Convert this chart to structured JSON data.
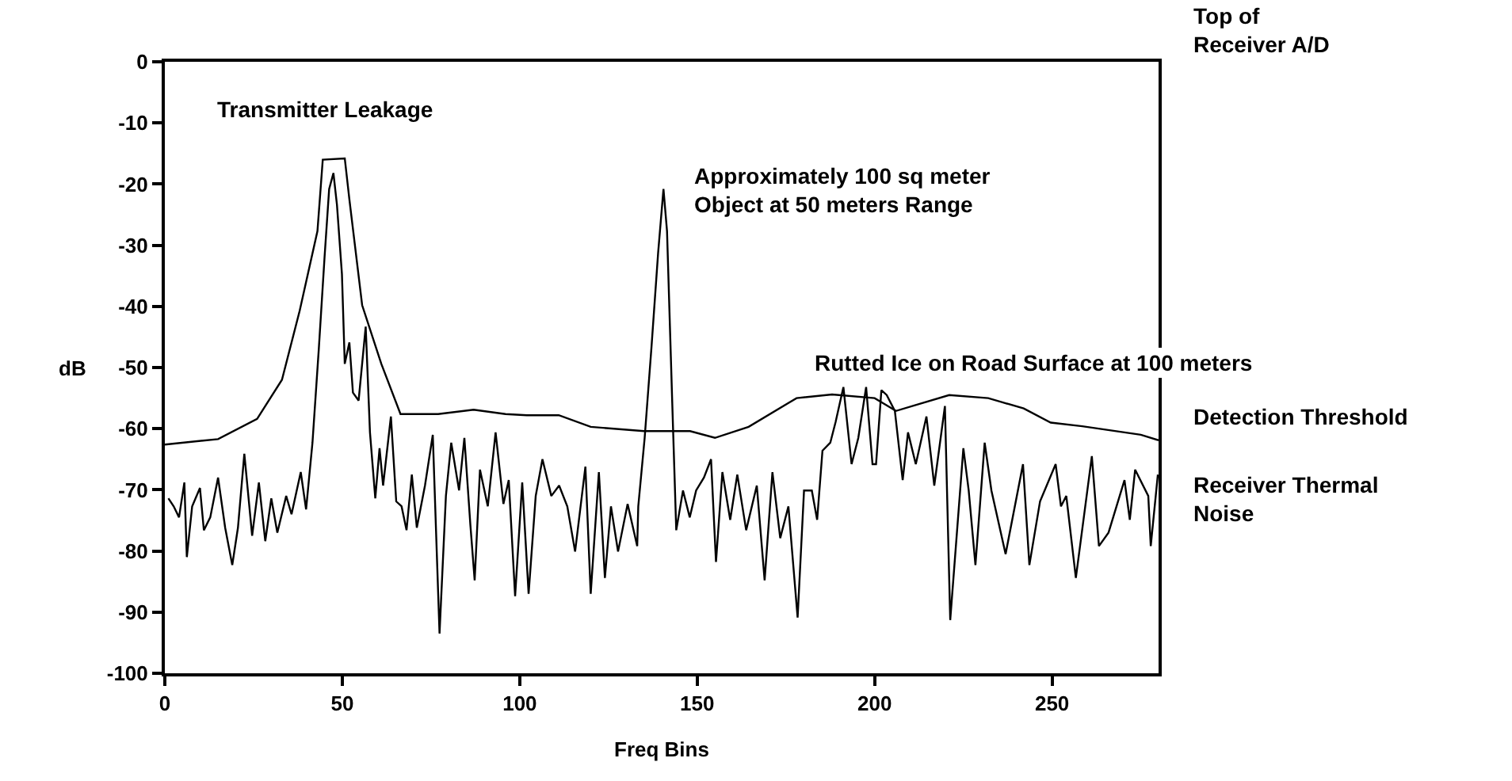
{
  "chart_data": {
    "type": "line",
    "xlabel": "Freq Bins",
    "ylabel": "dB",
    "xlim": [
      0,
      280
    ],
    "ylim": [
      -100,
      0
    ],
    "xticks": [
      0,
      50,
      100,
      150,
      200,
      250
    ],
    "yticks": [
      -100,
      -90,
      -80,
      -70,
      -60,
      -50,
      -40,
      -30,
      -20,
      -10,
      0
    ],
    "marker": "none",
    "line_style": "solid",
    "series": [
      {
        "color": "#000000",
        "x": [
          0,
          15,
          26,
          33,
          38,
          43,
          44.5,
          50.7,
          52,
          55.6,
          61,
          66.4,
          77,
          87,
          96,
          102,
          111,
          120,
          135,
          148,
          155,
          164.5,
          178,
          188,
          200,
          206,
          221,
          232,
          242,
          249.6,
          258.5,
          275,
          280
        ],
        "values": [
          -62.6,
          -61.7,
          -58.4,
          -52,
          -40.7,
          -27.7,
          -16,
          -15.8,
          -22.5,
          -39.8,
          -49.4,
          -57.6,
          -57.6,
          -56.9,
          -57.6,
          -57.8,
          -57.8,
          -59.7,
          -60.4,
          -60.4,
          -61.5,
          -59.7,
          -55,
          -54.4,
          -55,
          -57.1,
          -54.5,
          -55,
          -56.7,
          -59,
          -59.6,
          -61,
          -61.9
        ]
      },
      {
        "color": "#000000",
        "x": [
          1,
          2.5,
          4,
          5.5,
          6.2,
          7.7,
          9.9,
          11,
          12.8,
          15,
          17,
          19,
          20.6,
          22.4,
          24.6,
          26.5,
          28.3,
          30,
          31.7,
          34.2,
          35.7,
          38.3,
          39.8,
          41.6,
          43.4,
          45,
          46.3,
          47.5,
          48.5,
          49.9,
          50.7,
          52,
          53,
          54.6,
          56.6,
          57.8,
          59.3,
          60.5,
          61.5,
          63.7,
          65.2,
          66.7,
          68.1,
          69.6,
          71,
          73.3,
          75.5,
          77.4,
          79.2,
          80.7,
          82.9,
          84.4,
          86.1,
          87.3,
          88.8,
          91,
          93.2,
          95.4,
          96.9,
          98.7,
          100.7,
          102.5,
          104.5,
          106.4,
          108.9,
          111.1,
          113.4,
          115.6,
          118.5,
          120,
          122.3,
          124,
          125.7,
          127.7,
          130.4,
          133.1,
          133.4,
          135.2,
          137.1,
          139,
          140.5,
          141.5,
          143,
          144.1,
          146,
          147.9,
          149.7,
          151.9,
          153.9,
          155.3,
          157.1,
          159.3,
          161.3,
          163.8,
          166.8,
          169,
          171.2,
          173.4,
          175.7,
          178.3,
          180.1,
          182.3,
          183.8,
          185.3,
          187.5,
          189,
          191.2,
          193.5,
          195.4,
          197.6,
          199.4,
          200.4,
          201.9,
          203.4,
          205.7,
          207.9,
          209.4,
          211.6,
          214.6,
          216.8,
          219.8,
          221.3,
          225,
          226.5,
          228.4,
          231,
          232.9,
          236.9,
          241.8,
          243.6,
          246.6,
          251,
          252.5,
          254,
          256.7,
          261.2,
          263.2,
          265.9,
          270.4,
          271.9,
          273.4,
          277.1,
          277.8,
          279.8
        ],
        "values": [
          -71.4,
          -72.7,
          -74.5,
          -68.8,
          -81,
          -72.7,
          -69.7,
          -76.6,
          -74.5,
          -68,
          -76.2,
          -82.3,
          -76.2,
          -64.1,
          -77.5,
          -68.8,
          -78.4,
          -71.4,
          -77,
          -71,
          -74,
          -67.1,
          -73.2,
          -62.3,
          -46.8,
          -32,
          -20.8,
          -18.2,
          -23.4,
          -34.7,
          -49.4,
          -45.9,
          -54.1,
          -55.4,
          -43.3,
          -60.6,
          -71.4,
          -63.2,
          -69.3,
          -58,
          -71.9,
          -72.7,
          -76.6,
          -67.5,
          -76.2,
          -69.3,
          -61,
          -93.5,
          -71,
          -62.3,
          -70.1,
          -61.5,
          -75.8,
          -84.8,
          -66.7,
          -72.7,
          -60.6,
          -72.3,
          -68.4,
          -87.4,
          -68.8,
          -87,
          -71,
          -65,
          -71,
          -69.3,
          -72.7,
          -80.1,
          -66.2,
          -87,
          -67.1,
          -84.4,
          -72.7,
          -80.1,
          -72.3,
          -79.2,
          -72.7,
          -61.5,
          -46.8,
          -31.2,
          -20.8,
          -27.7,
          -56.3,
          -76.6,
          -70.1,
          -74.5,
          -70.1,
          -68,
          -65,
          -81.8,
          -67.1,
          -74.9,
          -67.5,
          -76.6,
          -69.3,
          -84.8,
          -67.1,
          -77.9,
          -72.7,
          -90.9,
          -70.1,
          -70.1,
          -74.9,
          -63.6,
          -62.3,
          -58.9,
          -53.2,
          -65.8,
          -61.5,
          -53.2,
          -65.8,
          -65.8,
          -53.7,
          -54.5,
          -57.1,
          -68.4,
          -60.6,
          -65.8,
          -58,
          -69.3,
          -56.3,
          -91.3,
          -63.2,
          -70.1,
          -82.3,
          -62.3,
          -70.1,
          -80.5,
          -65.8,
          -82.3,
          -71.9,
          -65.8,
          -72.7,
          -71,
          -84.4,
          -64.5,
          -79.2,
          -77,
          -68.4,
          -74.9,
          -66.7,
          -71,
          -79.2,
          -67.5
        ]
      }
    ],
    "annotations": [
      {
        "text": "Transmitter Leakage",
        "x": 48,
        "y": -16
      },
      {
        "text": "Approximately 100 sq meter\nObject at 50 meters Range",
        "x": 141,
        "y": -21
      },
      {
        "text": "Rutted Ice on Road Surface at 100 meters",
        "x": 200,
        "y": -54
      },
      "Top of\nReceiver A/D",
      {
        "text": "Detection Threshold",
        "x": 280,
        "y": -62
      },
      {
        "text": "Receiver Thermal\nNoise",
        "x": 280,
        "y": -72
      }
    ]
  }
}
